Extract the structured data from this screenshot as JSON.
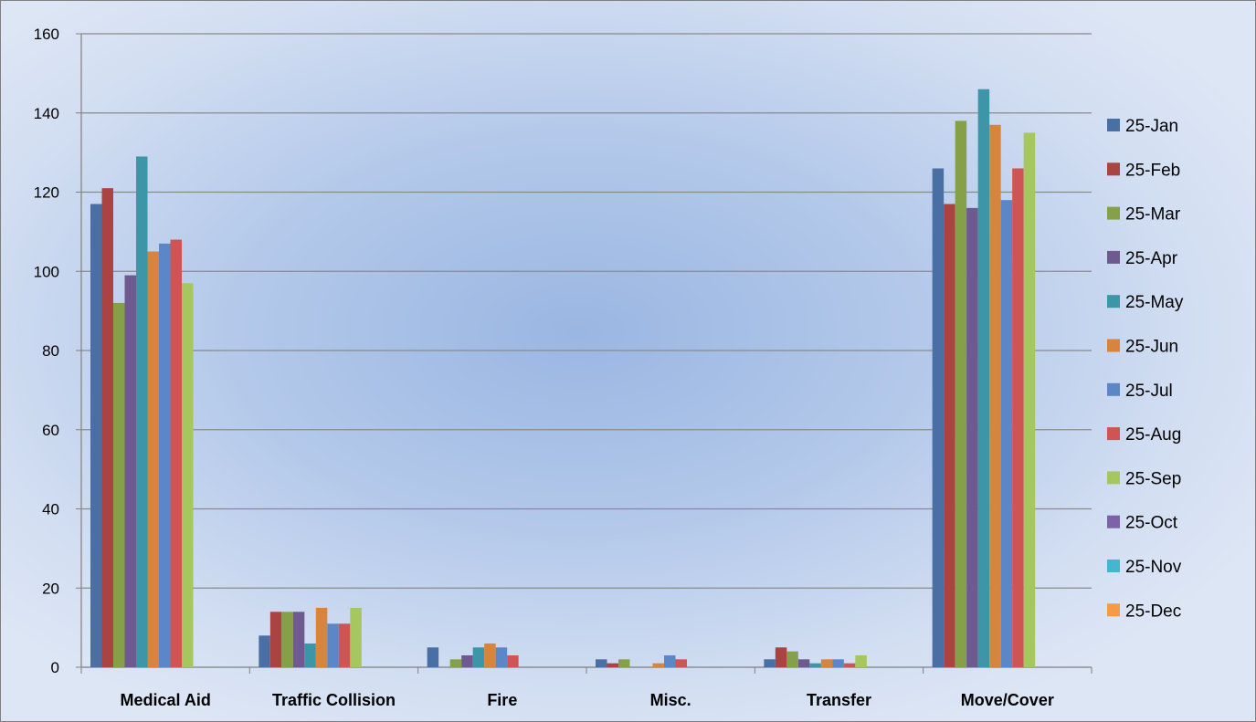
{
  "chart_data": {
    "type": "bar",
    "title": "",
    "xlabel": "",
    "ylabel": "",
    "ylim": [
      0,
      160
    ],
    "yticks": [
      0,
      20,
      40,
      60,
      80,
      100,
      120,
      140,
      160
    ],
    "grid": true,
    "legend_position": "right",
    "categories": [
      "Medical Aid",
      "Traffic Collision",
      "Fire",
      "Misc.",
      "Transfer",
      "Move/Cover"
    ],
    "series": [
      {
        "name": "25-Jan",
        "color": "#4a6fa5",
        "values": [
          117,
          8,
          5,
          2,
          2,
          126
        ]
      },
      {
        "name": "25-Feb",
        "color": "#a94442",
        "values": [
          121,
          14,
          0,
          1,
          5,
          117
        ]
      },
      {
        "name": "25-Mar",
        "color": "#86a04a",
        "values": [
          92,
          14,
          2,
          2,
          4,
          138
        ]
      },
      {
        "name": "25-Apr",
        "color": "#6e5a8e",
        "values": [
          99,
          14,
          3,
          0,
          2,
          116
        ]
      },
      {
        "name": "25-May",
        "color": "#3d95a8",
        "values": [
          129,
          6,
          5,
          0,
          1,
          146
        ]
      },
      {
        "name": "25-Jun",
        "color": "#d7843c",
        "values": [
          105,
          15,
          6,
          1,
          2,
          137
        ]
      },
      {
        "name": "25-Jul",
        "color": "#5b86c7",
        "values": [
          107,
          11,
          5,
          3,
          2,
          118
        ]
      },
      {
        "name": "25-Aug",
        "color": "#cf5555",
        "values": [
          108,
          11,
          3,
          2,
          1,
          126
        ]
      },
      {
        "name": "25-Sep",
        "color": "#a6c660",
        "values": [
          97,
          15,
          0,
          0,
          3,
          135
        ]
      },
      {
        "name": "25-Oct",
        "color": "#7d62a8",
        "values": [
          0,
          0,
          0,
          0,
          0,
          0
        ]
      },
      {
        "name": "25-Nov",
        "color": "#46b5cf",
        "values": [
          0,
          0,
          0,
          0,
          0,
          0
        ]
      },
      {
        "name": "25-Dec",
        "color": "#f79a46",
        "values": [
          0,
          0,
          0,
          0,
          0,
          0
        ]
      }
    ]
  }
}
